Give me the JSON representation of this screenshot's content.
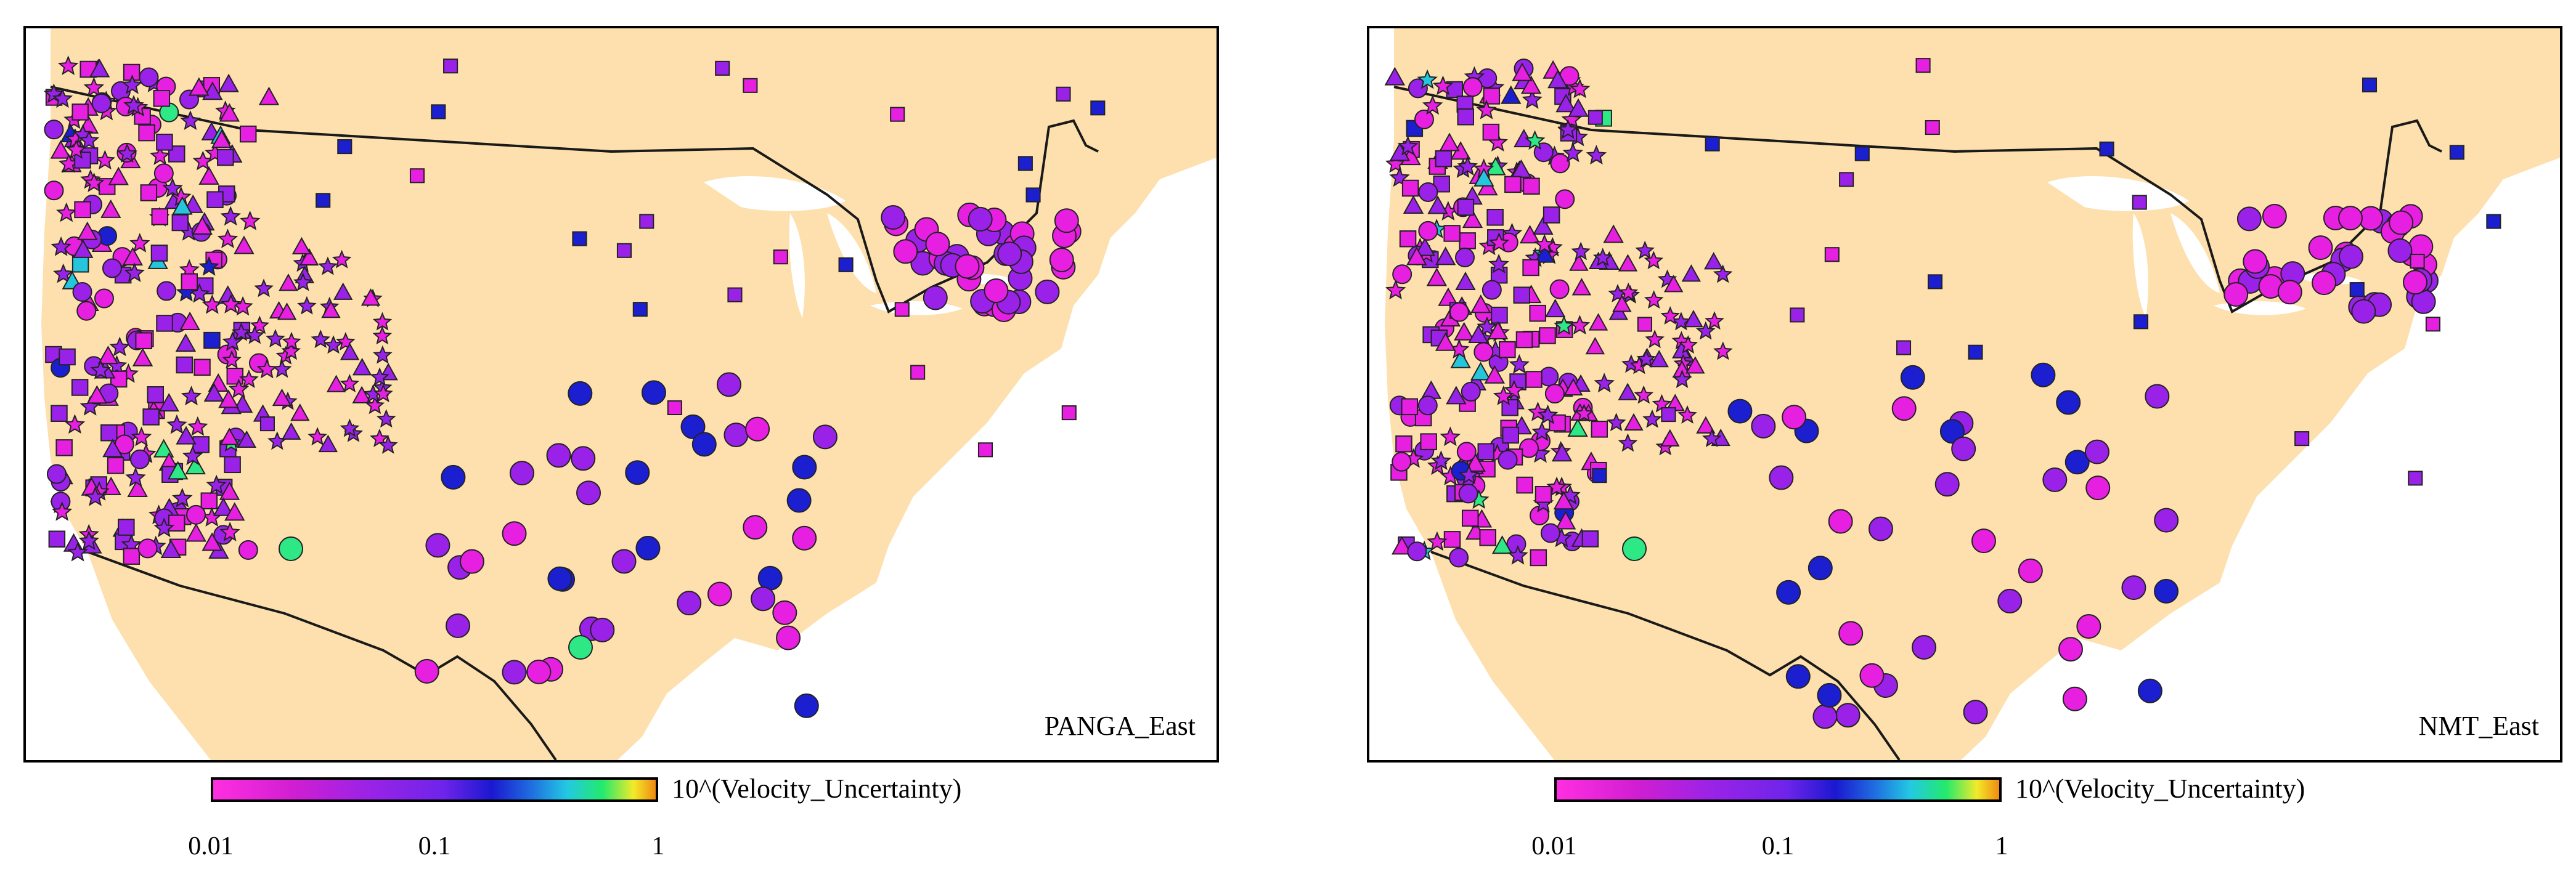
{
  "panels": [
    {
      "label": "PANGA_East",
      "colorbar": {
        "title": "10^(Velocity_Uncertainty)",
        "ticks": [
          "0.01",
          "0.1",
          "1"
        ],
        "scale": "log",
        "range": [
          0.01,
          1
        ]
      }
    },
    {
      "label": "NMT_East",
      "colorbar": {
        "title": "10^(Velocity_Uncertainty)",
        "ticks": [
          "0.01",
          "0.1",
          "1"
        ],
        "scale": "log",
        "range": [
          0.01,
          1
        ]
      }
    }
  ],
  "colors": {
    "land": "#fde0ae",
    "border": "#1a1a1a",
    "marker_magenta": "#e61fe0",
    "marker_purple": "#9a22e8",
    "marker_blue": "#1c1fd0",
    "marker_cyan": "#25c6dc",
    "marker_green": "#2ee886",
    "marker_orange": "#f09a20"
  },
  "marker_shapes": [
    "circle",
    "square",
    "triangle",
    "star"
  ]
}
